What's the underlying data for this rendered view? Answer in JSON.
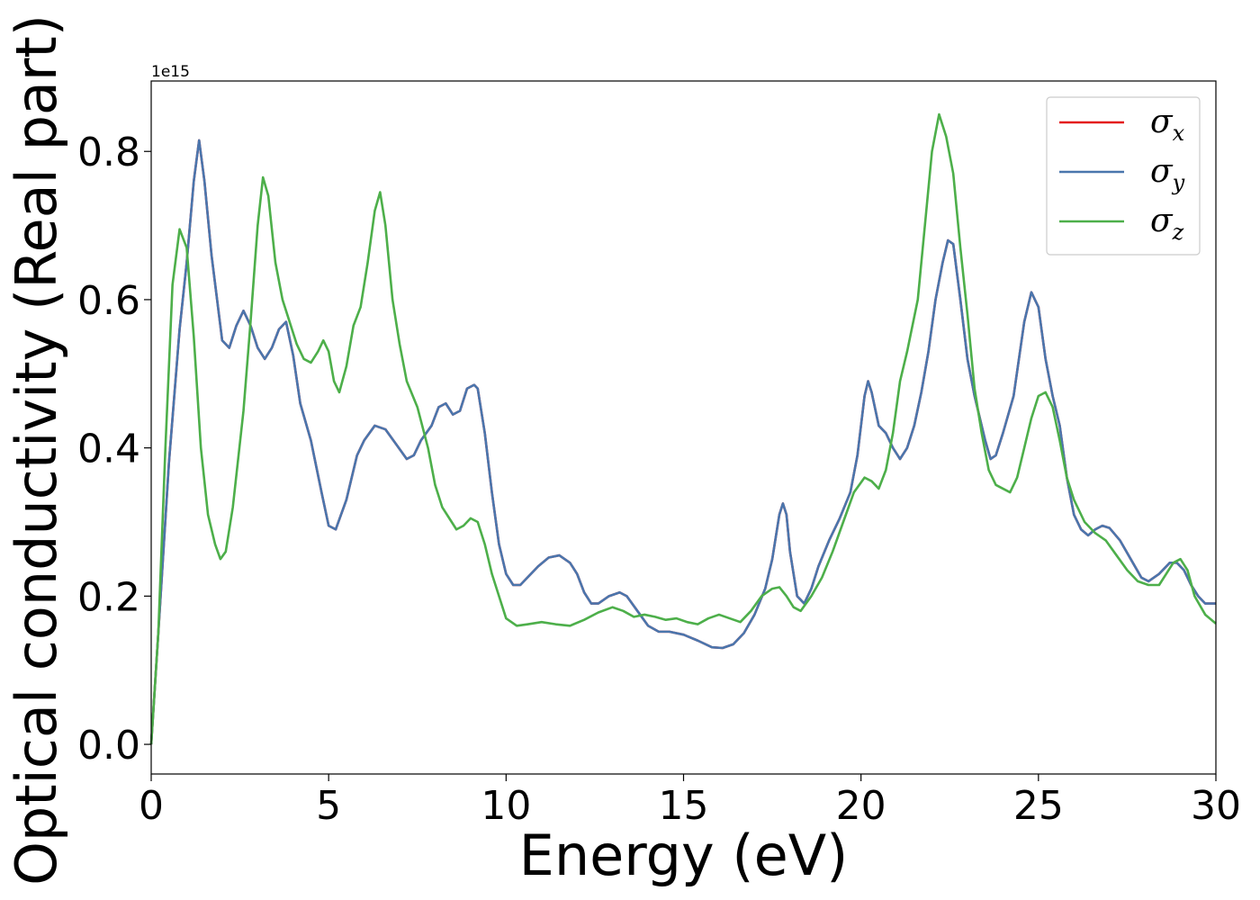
{
  "chart_data": {
    "type": "line",
    "xlabel": "Energy (eV)",
    "ylabel": "Optical conductivity (Real part)",
    "y_offset_label": "1e15",
    "xlim": [
      0,
      30
    ],
    "ylim": [
      -0.04,
      0.895
    ],
    "xticks": [
      0,
      5,
      10,
      15,
      20,
      25,
      30
    ],
    "xtick_labels": [
      "0",
      "5",
      "10",
      "15",
      "20",
      "25",
      "30"
    ],
    "yticks": [
      0.0,
      0.2,
      0.4,
      0.6,
      0.8
    ],
    "ytick_labels": [
      "0.0",
      "0.2",
      "0.4",
      "0.6",
      "0.8"
    ],
    "grid": false,
    "legend_position": "top-right",
    "series": [
      {
        "name": "σx",
        "symbol": "σ",
        "subscript": "x",
        "color": "#e41a1c",
        "x": [
          0,
          0.2,
          0.5,
          0.8,
          1.0,
          1.2,
          1.35,
          1.5,
          1.7,
          2.0,
          2.2,
          2.4,
          2.6,
          2.8,
          3.0,
          3.2,
          3.4,
          3.6,
          3.8,
          4.0,
          4.2,
          4.5,
          4.8,
          5.0,
          5.2,
          5.5,
          5.8,
          6.0,
          6.3,
          6.6,
          6.9,
          7.2,
          7.4,
          7.6,
          7.9,
          8.1,
          8.3,
          8.5,
          8.7,
          8.9,
          9.1,
          9.2,
          9.4,
          9.6,
          9.8,
          10.0,
          10.2,
          10.4,
          10.6,
          10.9,
          11.2,
          11.5,
          11.8,
          12.0,
          12.2,
          12.4,
          12.6,
          12.9,
          13.2,
          13.4,
          13.7,
          14.0,
          14.3,
          14.6,
          15.0,
          15.4,
          15.8,
          16.1,
          16.4,
          16.7,
          17.0,
          17.3,
          17.5,
          17.7,
          17.8,
          17.9,
          18.0,
          18.2,
          18.4,
          18.6,
          18.8,
          19.1,
          19.4,
          19.7,
          19.9,
          20.1,
          20.2,
          20.3,
          20.5,
          20.7,
          20.9,
          21.1,
          21.3,
          21.5,
          21.7,
          21.9,
          22.1,
          22.3,
          22.45,
          22.6,
          22.8,
          23.0,
          23.2,
          23.5,
          23.65,
          23.8,
          24.0,
          24.3,
          24.6,
          24.8,
          25.0,
          25.2,
          25.4,
          25.6,
          25.8,
          26.0,
          26.2,
          26.4,
          26.6,
          26.8,
          27.0,
          27.3,
          27.6,
          27.9,
          28.1,
          28.4,
          28.7,
          28.9,
          29.1,
          29.3,
          29.5,
          29.7,
          30
        ],
        "values": [
          0.0,
          0.15,
          0.38,
          0.56,
          0.65,
          0.76,
          0.815,
          0.76,
          0.66,
          0.545,
          0.535,
          0.565,
          0.585,
          0.565,
          0.535,
          0.52,
          0.535,
          0.56,
          0.57,
          0.525,
          0.46,
          0.41,
          0.34,
          0.295,
          0.29,
          0.33,
          0.39,
          0.41,
          0.43,
          0.425,
          0.405,
          0.385,
          0.39,
          0.41,
          0.43,
          0.455,
          0.46,
          0.445,
          0.45,
          0.48,
          0.485,
          0.48,
          0.42,
          0.34,
          0.27,
          0.23,
          0.215,
          0.215,
          0.225,
          0.24,
          0.252,
          0.255,
          0.245,
          0.23,
          0.205,
          0.19,
          0.19,
          0.2,
          0.205,
          0.2,
          0.18,
          0.16,
          0.152,
          0.152,
          0.148,
          0.14,
          0.131,
          0.13,
          0.135,
          0.15,
          0.175,
          0.21,
          0.25,
          0.31,
          0.325,
          0.31,
          0.26,
          0.2,
          0.19,
          0.21,
          0.24,
          0.275,
          0.305,
          0.34,
          0.39,
          0.47,
          0.49,
          0.475,
          0.43,
          0.42,
          0.4,
          0.385,
          0.4,
          0.43,
          0.475,
          0.53,
          0.6,
          0.65,
          0.68,
          0.675,
          0.6,
          0.52,
          0.47,
          0.41,
          0.385,
          0.39,
          0.42,
          0.47,
          0.57,
          0.61,
          0.59,
          0.52,
          0.47,
          0.43,
          0.36,
          0.31,
          0.29,
          0.282,
          0.29,
          0.295,
          0.292,
          0.275,
          0.25,
          0.225,
          0.22,
          0.23,
          0.245,
          0.245,
          0.235,
          0.215,
          0.2,
          0.19,
          0.19
        ]
      },
      {
        "name": "σy",
        "symbol": "σ",
        "subscript": "y",
        "color": "#4a76ad",
        "x": [
          0,
          0.2,
          0.5,
          0.8,
          1.0,
          1.2,
          1.35,
          1.5,
          1.7,
          2.0,
          2.2,
          2.4,
          2.6,
          2.8,
          3.0,
          3.2,
          3.4,
          3.6,
          3.8,
          4.0,
          4.2,
          4.5,
          4.8,
          5.0,
          5.2,
          5.5,
          5.8,
          6.0,
          6.3,
          6.6,
          6.9,
          7.2,
          7.4,
          7.6,
          7.9,
          8.1,
          8.3,
          8.5,
          8.7,
          8.9,
          9.1,
          9.2,
          9.4,
          9.6,
          9.8,
          10.0,
          10.2,
          10.4,
          10.6,
          10.9,
          11.2,
          11.5,
          11.8,
          12.0,
          12.2,
          12.4,
          12.6,
          12.9,
          13.2,
          13.4,
          13.7,
          14.0,
          14.3,
          14.6,
          15.0,
          15.4,
          15.8,
          16.1,
          16.4,
          16.7,
          17.0,
          17.3,
          17.5,
          17.7,
          17.8,
          17.9,
          18.0,
          18.2,
          18.4,
          18.6,
          18.8,
          19.1,
          19.4,
          19.7,
          19.9,
          20.1,
          20.2,
          20.3,
          20.5,
          20.7,
          20.9,
          21.1,
          21.3,
          21.5,
          21.7,
          21.9,
          22.1,
          22.3,
          22.45,
          22.6,
          22.8,
          23.0,
          23.2,
          23.5,
          23.65,
          23.8,
          24.0,
          24.3,
          24.6,
          24.8,
          25.0,
          25.2,
          25.4,
          25.6,
          25.8,
          26.0,
          26.2,
          26.4,
          26.6,
          26.8,
          27.0,
          27.3,
          27.6,
          27.9,
          28.1,
          28.4,
          28.7,
          28.9,
          29.1,
          29.3,
          29.5,
          29.7,
          30
        ],
        "values": [
          0.0,
          0.15,
          0.38,
          0.56,
          0.65,
          0.76,
          0.815,
          0.76,
          0.66,
          0.545,
          0.535,
          0.565,
          0.585,
          0.565,
          0.535,
          0.52,
          0.535,
          0.56,
          0.57,
          0.525,
          0.46,
          0.41,
          0.34,
          0.295,
          0.29,
          0.33,
          0.39,
          0.41,
          0.43,
          0.425,
          0.405,
          0.385,
          0.39,
          0.41,
          0.43,
          0.455,
          0.46,
          0.445,
          0.45,
          0.48,
          0.485,
          0.48,
          0.42,
          0.34,
          0.27,
          0.23,
          0.215,
          0.215,
          0.225,
          0.24,
          0.252,
          0.255,
          0.245,
          0.23,
          0.205,
          0.19,
          0.19,
          0.2,
          0.205,
          0.2,
          0.18,
          0.16,
          0.152,
          0.152,
          0.148,
          0.14,
          0.131,
          0.13,
          0.135,
          0.15,
          0.175,
          0.21,
          0.25,
          0.31,
          0.325,
          0.31,
          0.26,
          0.2,
          0.19,
          0.21,
          0.24,
          0.275,
          0.305,
          0.34,
          0.39,
          0.47,
          0.49,
          0.475,
          0.43,
          0.42,
          0.4,
          0.385,
          0.4,
          0.43,
          0.475,
          0.53,
          0.6,
          0.65,
          0.68,
          0.675,
          0.6,
          0.52,
          0.47,
          0.41,
          0.385,
          0.39,
          0.42,
          0.47,
          0.57,
          0.61,
          0.59,
          0.52,
          0.47,
          0.43,
          0.36,
          0.31,
          0.29,
          0.282,
          0.29,
          0.295,
          0.292,
          0.275,
          0.25,
          0.225,
          0.22,
          0.23,
          0.245,
          0.245,
          0.235,
          0.215,
          0.2,
          0.19,
          0.19
        ]
      },
      {
        "name": "σz",
        "symbol": "σ",
        "subscript": "z",
        "color": "#4daf4a",
        "x": [
          0,
          0.2,
          0.4,
          0.6,
          0.8,
          1.0,
          1.2,
          1.4,
          1.6,
          1.8,
          1.95,
          2.1,
          2.3,
          2.6,
          2.8,
          3.0,
          3.15,
          3.3,
          3.5,
          3.7,
          3.9,
          4.1,
          4.3,
          4.5,
          4.7,
          4.85,
          5.0,
          5.15,
          5.3,
          5.5,
          5.7,
          5.9,
          6.1,
          6.3,
          6.45,
          6.6,
          6.8,
          7.0,
          7.2,
          7.5,
          7.8,
          8.0,
          8.2,
          8.4,
          8.6,
          8.8,
          9.0,
          9.2,
          9.4,
          9.6,
          9.8,
          10.0,
          10.3,
          10.6,
          11.0,
          11.4,
          11.8,
          12.2,
          12.6,
          13.0,
          13.3,
          13.6,
          13.9,
          14.2,
          14.5,
          14.8,
          15.1,
          15.4,
          15.7,
          16.0,
          16.3,
          16.6,
          16.9,
          17.2,
          17.5,
          17.7,
          17.9,
          18.1,
          18.3,
          18.6,
          18.9,
          19.2,
          19.5,
          19.8,
          20.1,
          20.3,
          20.5,
          20.7,
          20.9,
          21.1,
          21.3,
          21.6,
          21.8,
          22.0,
          22.2,
          22.4,
          22.6,
          22.8,
          23.0,
          23.2,
          23.4,
          23.6,
          23.8,
          24.0,
          24.2,
          24.4,
          24.6,
          24.8,
          25.0,
          25.2,
          25.4,
          25.6,
          25.8,
          26.0,
          26.3,
          26.6,
          26.9,
          27.2,
          27.5,
          27.8,
          28.1,
          28.4,
          28.6,
          28.8,
          29.0,
          29.2,
          29.4,
          29.7,
          30
        ],
        "values": [
          0.0,
          0.15,
          0.4,
          0.62,
          0.695,
          0.67,
          0.55,
          0.4,
          0.31,
          0.27,
          0.25,
          0.26,
          0.32,
          0.45,
          0.57,
          0.7,
          0.765,
          0.74,
          0.65,
          0.6,
          0.57,
          0.54,
          0.52,
          0.515,
          0.53,
          0.545,
          0.53,
          0.49,
          0.475,
          0.51,
          0.565,
          0.59,
          0.65,
          0.72,
          0.745,
          0.7,
          0.6,
          0.54,
          0.49,
          0.455,
          0.4,
          0.35,
          0.32,
          0.305,
          0.29,
          0.295,
          0.305,
          0.3,
          0.27,
          0.23,
          0.2,
          0.17,
          0.16,
          0.162,
          0.165,
          0.162,
          0.16,
          0.168,
          0.178,
          0.185,
          0.18,
          0.172,
          0.175,
          0.172,
          0.168,
          0.17,
          0.165,
          0.162,
          0.17,
          0.175,
          0.17,
          0.165,
          0.18,
          0.2,
          0.21,
          0.212,
          0.2,
          0.185,
          0.18,
          0.2,
          0.225,
          0.26,
          0.3,
          0.34,
          0.36,
          0.355,
          0.345,
          0.37,
          0.42,
          0.49,
          0.53,
          0.6,
          0.7,
          0.8,
          0.85,
          0.82,
          0.77,
          0.67,
          0.58,
          0.48,
          0.42,
          0.37,
          0.35,
          0.345,
          0.34,
          0.36,
          0.4,
          0.44,
          0.47,
          0.475,
          0.455,
          0.41,
          0.36,
          0.33,
          0.3,
          0.285,
          0.275,
          0.255,
          0.235,
          0.22,
          0.215,
          0.215,
          0.23,
          0.245,
          0.25,
          0.235,
          0.2,
          0.175,
          0.163
        ]
      }
    ]
  }
}
